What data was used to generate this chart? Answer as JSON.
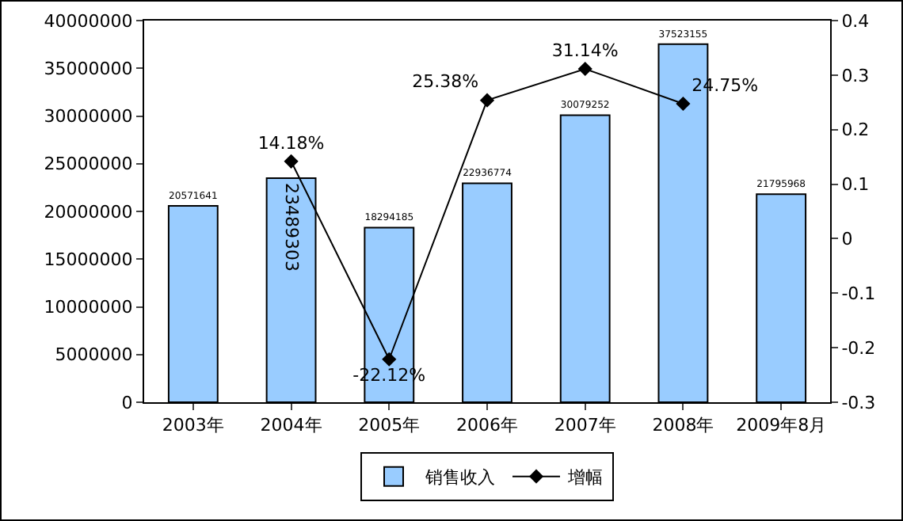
{
  "chart_data": {
    "type": "bar",
    "categories": [
      "2003年",
      "2004年",
      "2005年",
      "2006年",
      "2007年",
      "2008年",
      "2009年8月"
    ],
    "series": [
      {
        "name": "销售收入",
        "color": "#99ccff",
        "values": [
          20571641,
          23489303,
          18294185,
          22936774,
          30079252,
          37523155,
          21795968
        ],
        "value_labels": [
          "20571641",
          "23489303",
          "18294185",
          "22936774",
          "30079252",
          "37523155",
          "21795968"
        ]
      },
      {
        "name": "增幅",
        "type": "line",
        "axis": "y2",
        "color": "#000000",
        "marker": "diamond",
        "values": [
          null,
          0.1418,
          -0.2212,
          0.2538,
          0.3114,
          0.2475,
          null
        ],
        "value_labels": [
          null,
          "14.18%",
          "-22.12%",
          "25.38%",
          "31.14%",
          "24.75%",
          null
        ]
      }
    ],
    "ylim": [
      0,
      40000000
    ],
    "yticks": [
      0,
      5000000,
      10000000,
      15000000,
      20000000,
      25000000,
      30000000,
      35000000,
      40000000
    ],
    "y2lim": [
      -0.3,
      0.4
    ],
    "y2ticks": [
      -0.3,
      -0.2,
      -0.1,
      0,
      0.1,
      0.2,
      0.3,
      0.4
    ],
    "grid": false,
    "legend": "bottom"
  }
}
